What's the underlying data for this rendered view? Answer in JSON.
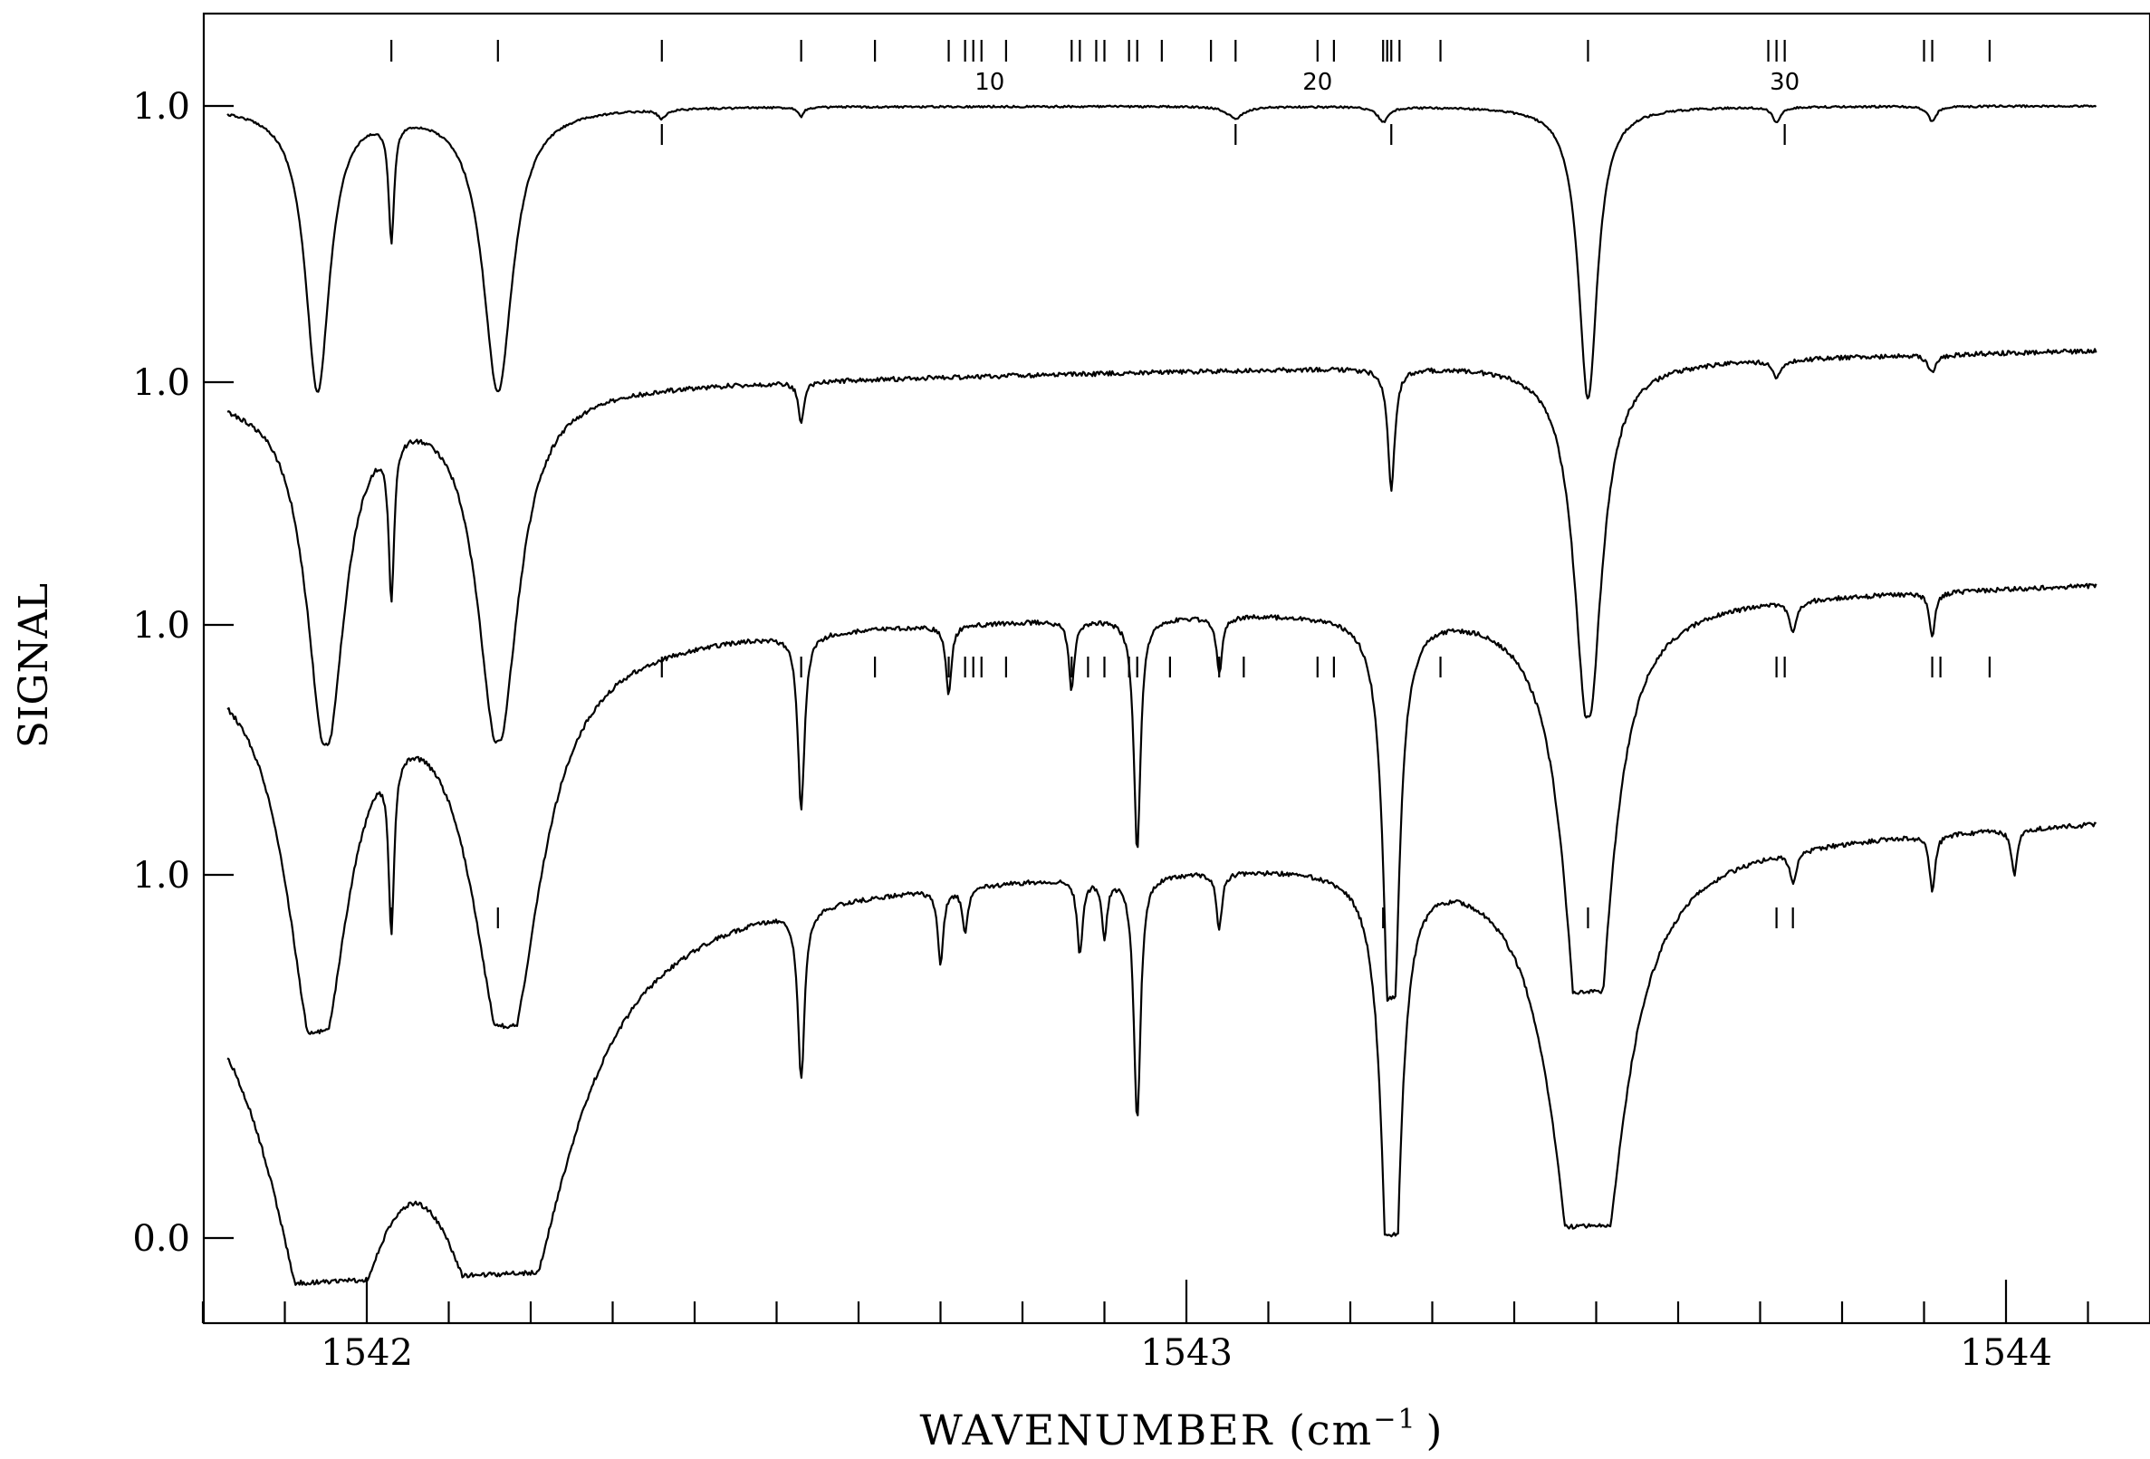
{
  "chart_data": {
    "type": "line",
    "ylabel": "SIGNAL",
    "xlabel": "WAVENUMBER (cm",
    "xlabel_exp": "−1",
    "xlabel_close": ")",
    "xlim": [
      1541.8,
      1544.13
    ],
    "x_ticks": [
      "1542",
      "1543",
      "1544"
    ],
    "x_tick_values": [
      1542,
      1543,
      1544
    ],
    "y_tick_labels": [
      "1.0",
      "1.0",
      "1.0",
      "1.0",
      "0.0"
    ],
    "grid": false,
    "series": [
      {
        "baseline": 1.0,
        "dips": [
          {
            "x": 1541.94,
            "depth": 0.95,
            "width": 0.018
          },
          {
            "x": 1542.03,
            "depth": 0.4,
            "width": 0.004
          },
          {
            "x": 1542.16,
            "depth": 0.95,
            "width": 0.022
          },
          {
            "x": 1542.36,
            "depth": 0.03,
            "width": 0.006
          },
          {
            "x": 1542.53,
            "depth": 0.03,
            "width": 0.004
          },
          {
            "x": 1543.06,
            "depth": 0.04,
            "width": 0.012
          },
          {
            "x": 1543.24,
            "depth": 0.05,
            "width": 0.008
          },
          {
            "x": 1543.49,
            "depth": 0.98,
            "width": 0.014
          },
          {
            "x": 1543.72,
            "depth": 0.05,
            "width": 0.006
          },
          {
            "x": 1543.91,
            "depth": 0.05,
            "width": 0.006
          }
        ]
      },
      {
        "baseline": 1.0,
        "dips": [
          {
            "x": 1541.95,
            "depth": 1.02,
            "width": 0.028
          },
          {
            "x": 1542.03,
            "depth": 0.45,
            "width": 0.004
          },
          {
            "x": 1542.16,
            "depth": 1.02,
            "width": 0.03
          },
          {
            "x": 1542.53,
            "depth": 0.12,
            "width": 0.004
          },
          {
            "x": 1543.25,
            "depth": 0.35,
            "width": 0.005
          },
          {
            "x": 1543.49,
            "depth": 1.05,
            "width": 0.02
          },
          {
            "x": 1543.72,
            "depth": 0.05,
            "width": 0.006
          },
          {
            "x": 1543.91,
            "depth": 0.05,
            "width": 0.006
          }
        ]
      },
      {
        "baseline": 1.0,
        "dips": [
          {
            "x": 1541.94,
            "depth": 1.05,
            "width": 0.045
          },
          {
            "x": 1542.03,
            "depth": 0.45,
            "width": 0.004
          },
          {
            "x": 1542.17,
            "depth": 1.05,
            "width": 0.05
          },
          {
            "x": 1542.53,
            "depth": 0.45,
            "width": 0.005
          },
          {
            "x": 1542.71,
            "depth": 0.18,
            "width": 0.004
          },
          {
            "x": 1542.86,
            "depth": 0.18,
            "width": 0.004
          },
          {
            "x": 1542.94,
            "depth": 0.6,
            "width": 0.005
          },
          {
            "x": 1543.04,
            "depth": 0.15,
            "width": 0.004
          },
          {
            "x": 1543.25,
            "depth": 1.3,
            "width": 0.01
          },
          {
            "x": 1543.49,
            "depth": 1.4,
            "width": 0.03
          },
          {
            "x": 1543.74,
            "depth": 0.08,
            "width": 0.005
          },
          {
            "x": 1543.91,
            "depth": 0.12,
            "width": 0.004
          }
        ]
      },
      {
        "baseline": 1.0,
        "dips": [
          {
            "x": 1541.95,
            "depth": 1.1,
            "width": 0.08
          },
          {
            "x": 1542.17,
            "depth": 1.1,
            "width": 0.09
          },
          {
            "x": 1542.53,
            "depth": 0.45,
            "width": 0.005
          },
          {
            "x": 1542.7,
            "depth": 0.2,
            "width": 0.004
          },
          {
            "x": 1542.73,
            "depth": 0.12,
            "width": 0.004
          },
          {
            "x": 1542.87,
            "depth": 0.2,
            "width": 0.004
          },
          {
            "x": 1542.9,
            "depth": 0.15,
            "width": 0.004
          },
          {
            "x": 1542.94,
            "depth": 0.65,
            "width": 0.005
          },
          {
            "x": 1543.04,
            "depth": 0.15,
            "width": 0.004
          },
          {
            "x": 1543.25,
            "depth": 1.4,
            "width": 0.012
          },
          {
            "x": 1543.49,
            "depth": 1.4,
            "width": 0.045
          },
          {
            "x": 1543.74,
            "depth": 0.08,
            "width": 0.005
          },
          {
            "x": 1543.91,
            "depth": 0.15,
            "width": 0.004
          },
          {
            "x": 1544.01,
            "depth": 0.12,
            "width": 0.004
          }
        ]
      }
    ],
    "top_line_markers": [
      1542.03,
      1542.16,
      1542.36,
      1542.53,
      1542.62,
      1542.71,
      1542.73,
      1542.74,
      1542.75,
      1542.78,
      1542.86,
      1542.87,
      1542.89,
      1542.9,
      1542.93,
      1542.94,
      1542.97,
      1543.03,
      1543.06,
      1543.16,
      1543.18,
      1543.24,
      1543.245,
      1543.25,
      1543.26,
      1543.31,
      1543.49,
      1543.71,
      1543.72,
      1543.73,
      1543.9,
      1543.91,
      1543.98
    ],
    "marker_numbers": [
      {
        "label": "10",
        "x": 1542.76
      },
      {
        "label": "20",
        "x": 1543.16
      },
      {
        "label": "30",
        "x": 1543.73
      }
    ],
    "assigned_markers": [
      {
        "trace": 0,
        "x": [
          1542.36,
          1543.06,
          1543.25,
          1543.73
        ]
      },
      {
        "trace": 2,
        "x": [
          1542.36,
          1542.53,
          1542.62,
          1542.71,
          1542.73,
          1542.74,
          1542.75,
          1542.78,
          1542.86,
          1542.88,
          1542.9,
          1542.93,
          1542.94,
          1542.98,
          1543.04,
          1543.07,
          1543.16,
          1543.18,
          1543.31,
          1543.72,
          1543.73,
          1543.91,
          1543.92,
          1543.98
        ]
      },
      {
        "trace": 3,
        "x": [
          1542.03,
          1542.16,
          1543.24,
          1543.49,
          1543.72,
          1543.74
        ]
      }
    ]
  }
}
